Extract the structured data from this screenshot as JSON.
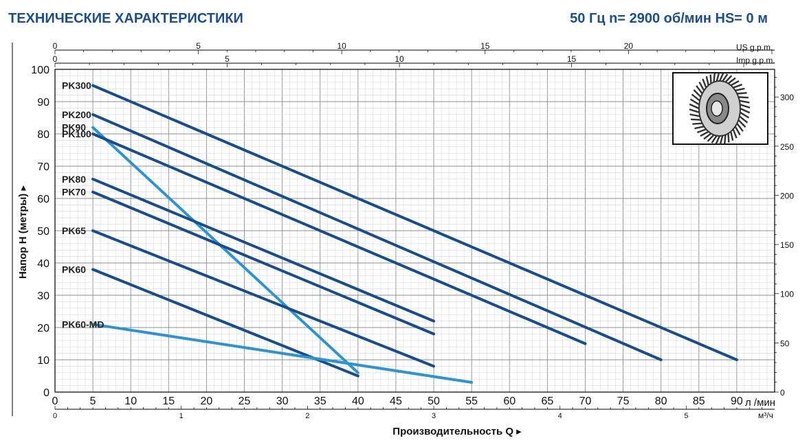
{
  "header": {
    "title": "ТЕХНИЧЕСКИЕ ХАРАКТЕРИСТИКИ",
    "spec": "50 Гц n= 2900 об/мин HS= 0 м"
  },
  "colors": {
    "dark_series": "#174d8f",
    "light_series": "#2b95d3",
    "grid_minor": "#d9d9d9",
    "grid_major": "#8c8c8c",
    "axis": "#000000",
    "header": "#1a4e8c"
  },
  "chart_data": {
    "type": "line",
    "title": "",
    "xlabel": "Производительность Q ▸",
    "ylabel": "Напор H (метры) ▸",
    "xlim": [
      0,
      95
    ],
    "ylim": [
      0,
      100
    ],
    "grid": true,
    "x_ticks": [
      0,
      5,
      10,
      15,
      20,
      25,
      30,
      35,
      40,
      45,
      50,
      55,
      60,
      65,
      70,
      75,
      80,
      85,
      90
    ],
    "x_unit": "л /мин",
    "y_ticks": [
      0,
      10,
      20,
      30,
      40,
      50,
      60,
      70,
      80,
      90,
      100
    ],
    "secondary_axes": {
      "m3h": {
        "unit": "м³/ч",
        "ticks": [
          0,
          1,
          2,
          3,
          4,
          5
        ]
      },
      "us_gpm": {
        "unit": "US g.p.m.",
        "ticks": [
          0,
          5,
          10,
          15,
          20
        ]
      },
      "imp_gpm": {
        "unit": "Imp g.p.m.",
        "ticks": [
          0,
          5,
          10,
          15
        ]
      },
      "feet": {
        "unit": "",
        "ticks": [
          0,
          50,
          100,
          150,
          200,
          250,
          300
        ]
      }
    },
    "series": [
      {
        "name": "PK300",
        "color": "dark",
        "x": [
          5,
          90
        ],
        "y": [
          95,
          10
        ]
      },
      {
        "name": "PK200",
        "color": "dark",
        "x": [
          5,
          80
        ],
        "y": [
          86,
          10
        ]
      },
      {
        "name": "PK90",
        "color": "light",
        "x": [
          5,
          40
        ],
        "y": [
          82,
          6
        ]
      },
      {
        "name": "PK100",
        "color": "dark",
        "x": [
          5,
          70
        ],
        "y": [
          80,
          15
        ]
      },
      {
        "name": "PK80",
        "color": "dark",
        "x": [
          5,
          50
        ],
        "y": [
          66,
          22
        ]
      },
      {
        "name": "PK70",
        "color": "dark",
        "x": [
          5,
          50
        ],
        "y": [
          62,
          18
        ]
      },
      {
        "name": "PK65",
        "color": "dark",
        "x": [
          5,
          50
        ],
        "y": [
          50,
          8
        ]
      },
      {
        "name": "PK60",
        "color": "dark",
        "x": [
          5,
          40
        ],
        "y": [
          38,
          5
        ]
      },
      {
        "name": "PK60-MD",
        "color": "light",
        "x": [
          5,
          55
        ],
        "y": [
          21,
          3
        ]
      }
    ]
  }
}
